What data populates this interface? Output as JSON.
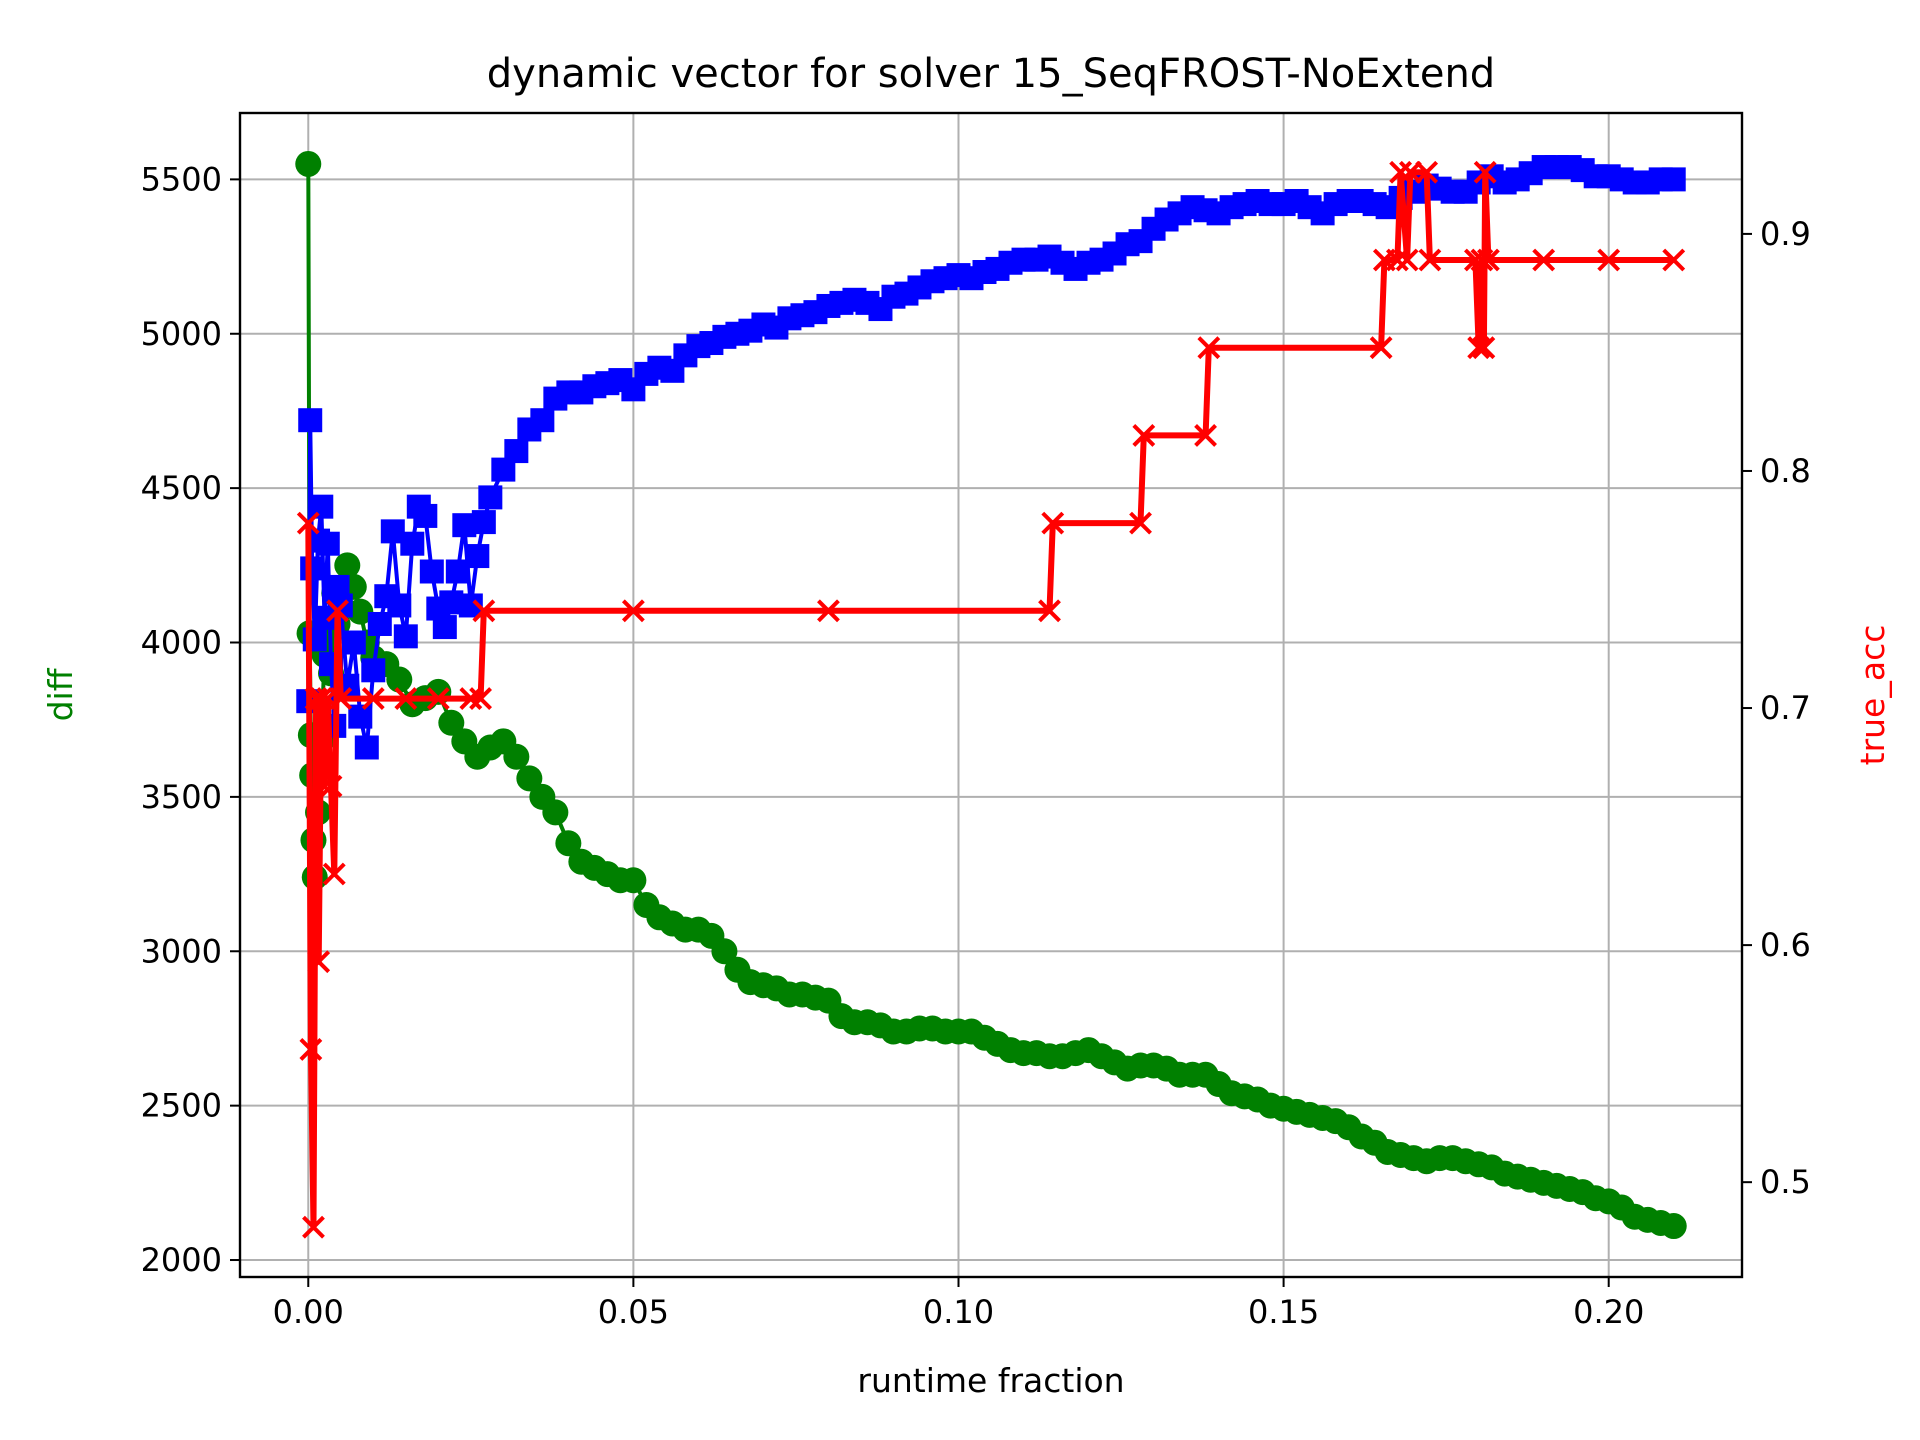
{
  "chart_data": {
    "type": "line",
    "title": "dynamic vector for solver 15_SeqFROST-NoExtend",
    "xlabel": "runtime fraction",
    "ylabel_left": "diff",
    "ylabel_right": "true_acc",
    "xlim": [
      -0.0105,
      0.2205
    ],
    "ylim_left": [
      1945,
      5715
    ],
    "ylim_right": [
      0.46,
      0.951
    ],
    "x_ticks": [
      0.0,
      0.05,
      0.1,
      0.15,
      0.2
    ],
    "x_tick_labels": [
      "0.00",
      "0.05",
      "0.10",
      "0.15",
      "0.20"
    ],
    "y_left_ticks": [
      2000,
      2500,
      3000,
      3500,
      4000,
      4500,
      5000,
      5500
    ],
    "y_left_tick_labels": [
      "2000",
      "2500",
      "3000",
      "3500",
      "4000",
      "4500",
      "5000",
      "5500"
    ],
    "y_right_ticks": [
      0.5,
      0.6,
      0.7,
      0.8,
      0.9
    ],
    "y_right_tick_labels": [
      "0.5",
      "0.6",
      "0.7",
      "0.8",
      "0.9"
    ],
    "grid": true,
    "colors": {
      "diff": "#008000",
      "blue": "#0000ff",
      "true_acc": "#ff0000",
      "axis_left_label": "#008000",
      "axis_right_label": "#ff0000"
    },
    "series": [
      {
        "axis": "left",
        "color": "#008000",
        "marker": "circle",
        "points": [
          [
            0.0,
            5550
          ],
          [
            0.0002,
            4030
          ],
          [
            0.0004,
            3700
          ],
          [
            0.0006,
            3570
          ],
          [
            0.0008,
            3360
          ],
          [
            0.001,
            3240
          ],
          [
            0.0015,
            3450
          ],
          [
            0.002,
            3680
          ],
          [
            0.0025,
            3960
          ],
          [
            0.003,
            4060
          ],
          [
            0.0035,
            3900
          ],
          [
            0.004,
            4160
          ],
          [
            0.0045,
            4060
          ],
          [
            0.005,
            4120
          ],
          [
            0.006,
            4250
          ],
          [
            0.007,
            4180
          ],
          [
            0.008,
            4100
          ],
          [
            0.009,
            4000
          ],
          [
            0.01,
            3950
          ],
          [
            0.012,
            3930
          ],
          [
            0.014,
            3880
          ],
          [
            0.016,
            3800
          ],
          [
            0.018,
            3820
          ],
          [
            0.02,
            3840
          ],
          [
            0.022,
            3740
          ],
          [
            0.024,
            3680
          ],
          [
            0.026,
            3630
          ],
          [
            0.028,
            3660
          ],
          [
            0.03,
            3680
          ],
          [
            0.032,
            3630
          ],
          [
            0.034,
            3560
          ],
          [
            0.036,
            3500
          ],
          [
            0.038,
            3450
          ],
          [
            0.04,
            3350
          ],
          [
            0.042,
            3290
          ],
          [
            0.044,
            3270
          ],
          [
            0.046,
            3250
          ],
          [
            0.048,
            3230
          ],
          [
            0.05,
            3230
          ],
          [
            0.052,
            3150
          ],
          [
            0.054,
            3110
          ],
          [
            0.056,
            3090
          ],
          [
            0.058,
            3070
          ],
          [
            0.06,
            3070
          ],
          [
            0.062,
            3050
          ],
          [
            0.064,
            3000
          ],
          [
            0.066,
            2940
          ],
          [
            0.068,
            2900
          ],
          [
            0.07,
            2890
          ],
          [
            0.072,
            2880
          ],
          [
            0.074,
            2860
          ],
          [
            0.076,
            2860
          ],
          [
            0.078,
            2850
          ],
          [
            0.08,
            2840
          ],
          [
            0.082,
            2790
          ],
          [
            0.084,
            2770
          ],
          [
            0.086,
            2770
          ],
          [
            0.088,
            2760
          ],
          [
            0.09,
            2740
          ],
          [
            0.092,
            2740
          ],
          [
            0.094,
            2750
          ],
          [
            0.096,
            2750
          ],
          [
            0.098,
            2740
          ],
          [
            0.1,
            2740
          ],
          [
            0.102,
            2740
          ],
          [
            0.104,
            2720
          ],
          [
            0.106,
            2700
          ],
          [
            0.108,
            2680
          ],
          [
            0.11,
            2670
          ],
          [
            0.112,
            2670
          ],
          [
            0.114,
            2660
          ],
          [
            0.116,
            2660
          ],
          [
            0.118,
            2670
          ],
          [
            0.12,
            2680
          ],
          [
            0.122,
            2660
          ],
          [
            0.124,
            2640
          ],
          [
            0.126,
            2620
          ],
          [
            0.128,
            2630
          ],
          [
            0.13,
            2630
          ],
          [
            0.132,
            2620
          ],
          [
            0.134,
            2600
          ],
          [
            0.136,
            2600
          ],
          [
            0.138,
            2600
          ],
          [
            0.14,
            2570
          ],
          [
            0.142,
            2540
          ],
          [
            0.144,
            2530
          ],
          [
            0.146,
            2520
          ],
          [
            0.148,
            2500
          ],
          [
            0.15,
            2490
          ],
          [
            0.152,
            2480
          ],
          [
            0.154,
            2470
          ],
          [
            0.156,
            2460
          ],
          [
            0.158,
            2450
          ],
          [
            0.16,
            2430
          ],
          [
            0.162,
            2400
          ],
          [
            0.164,
            2380
          ],
          [
            0.166,
            2350
          ],
          [
            0.168,
            2340
          ],
          [
            0.17,
            2330
          ],
          [
            0.172,
            2320
          ],
          [
            0.174,
            2330
          ],
          [
            0.176,
            2330
          ],
          [
            0.178,
            2320
          ],
          [
            0.18,
            2310
          ],
          [
            0.182,
            2300
          ],
          [
            0.184,
            2280
          ],
          [
            0.186,
            2270
          ],
          [
            0.188,
            2260
          ],
          [
            0.19,
            2250
          ],
          [
            0.192,
            2240
          ],
          [
            0.194,
            2230
          ],
          [
            0.196,
            2220
          ],
          [
            0.198,
            2200
          ],
          [
            0.2,
            2190
          ],
          [
            0.202,
            2170
          ],
          [
            0.204,
            2140
          ],
          [
            0.206,
            2130
          ],
          [
            0.208,
            2120
          ],
          [
            0.21,
            2110
          ]
        ]
      },
      {
        "axis": "left",
        "color": "#0000ff",
        "marker": "square",
        "points": [
          [
            0.0,
            3810
          ],
          [
            0.0003,
            4720
          ],
          [
            0.0006,
            4240
          ],
          [
            0.001,
            4010
          ],
          [
            0.0015,
            4330
          ],
          [
            0.002,
            4440
          ],
          [
            0.0025,
            4080
          ],
          [
            0.003,
            4320
          ],
          [
            0.0035,
            3930
          ],
          [
            0.004,
            3730
          ],
          [
            0.0045,
            4180
          ],
          [
            0.005,
            4120
          ],
          [
            0.006,
            3860
          ],
          [
            0.007,
            4000
          ],
          [
            0.008,
            3760
          ],
          [
            0.009,
            3660
          ],
          [
            0.01,
            3910
          ],
          [
            0.011,
            4060
          ],
          [
            0.012,
            4150
          ],
          [
            0.013,
            4360
          ],
          [
            0.014,
            4120
          ],
          [
            0.015,
            4020
          ],
          [
            0.016,
            4320
          ],
          [
            0.017,
            4440
          ],
          [
            0.018,
            4410
          ],
          [
            0.019,
            4230
          ],
          [
            0.02,
            4110
          ],
          [
            0.021,
            4050
          ],
          [
            0.022,
            4130
          ],
          [
            0.023,
            4230
          ],
          [
            0.024,
            4380
          ],
          [
            0.025,
            4120
          ],
          [
            0.026,
            4280
          ],
          [
            0.027,
            4390
          ],
          [
            0.028,
            4470
          ],
          [
            0.03,
            4560
          ],
          [
            0.032,
            4620
          ],
          [
            0.034,
            4690
          ],
          [
            0.036,
            4720
          ],
          [
            0.038,
            4790
          ],
          [
            0.04,
            4810
          ],
          [
            0.042,
            4810
          ],
          [
            0.044,
            4830
          ],
          [
            0.046,
            4840
          ],
          [
            0.048,
            4850
          ],
          [
            0.05,
            4820
          ],
          [
            0.052,
            4870
          ],
          [
            0.054,
            4890
          ],
          [
            0.056,
            4880
          ],
          [
            0.058,
            4930
          ],
          [
            0.06,
            4960
          ],
          [
            0.062,
            4970
          ],
          [
            0.064,
            4990
          ],
          [
            0.066,
            5000
          ],
          [
            0.068,
            5010
          ],
          [
            0.07,
            5030
          ],
          [
            0.072,
            5020
          ],
          [
            0.074,
            5050
          ],
          [
            0.076,
            5060
          ],
          [
            0.078,
            5070
          ],
          [
            0.08,
            5090
          ],
          [
            0.082,
            5100
          ],
          [
            0.084,
            5110
          ],
          [
            0.086,
            5100
          ],
          [
            0.088,
            5080
          ],
          [
            0.09,
            5120
          ],
          [
            0.092,
            5130
          ],
          [
            0.094,
            5150
          ],
          [
            0.096,
            5170
          ],
          [
            0.098,
            5180
          ],
          [
            0.1,
            5190
          ],
          [
            0.102,
            5180
          ],
          [
            0.104,
            5200
          ],
          [
            0.106,
            5210
          ],
          [
            0.108,
            5230
          ],
          [
            0.11,
            5240
          ],
          [
            0.112,
            5240
          ],
          [
            0.114,
            5250
          ],
          [
            0.116,
            5230
          ],
          [
            0.118,
            5210
          ],
          [
            0.12,
            5230
          ],
          [
            0.122,
            5240
          ],
          [
            0.124,
            5260
          ],
          [
            0.126,
            5290
          ],
          [
            0.128,
            5300
          ],
          [
            0.13,
            5340
          ],
          [
            0.132,
            5370
          ],
          [
            0.134,
            5390
          ],
          [
            0.136,
            5410
          ],
          [
            0.138,
            5400
          ],
          [
            0.14,
            5390
          ],
          [
            0.142,
            5410
          ],
          [
            0.144,
            5420
          ],
          [
            0.146,
            5430
          ],
          [
            0.148,
            5420
          ],
          [
            0.15,
            5420
          ],
          [
            0.152,
            5430
          ],
          [
            0.154,
            5410
          ],
          [
            0.156,
            5390
          ],
          [
            0.158,
            5420
          ],
          [
            0.16,
            5430
          ],
          [
            0.162,
            5430
          ],
          [
            0.164,
            5420
          ],
          [
            0.166,
            5410
          ],
          [
            0.168,
            5440
          ],
          [
            0.17,
            5460
          ],
          [
            0.172,
            5480
          ],
          [
            0.174,
            5470
          ],
          [
            0.176,
            5460
          ],
          [
            0.178,
            5460
          ],
          [
            0.18,
            5490
          ],
          [
            0.182,
            5510
          ],
          [
            0.184,
            5490
          ],
          [
            0.186,
            5500
          ],
          [
            0.188,
            5520
          ],
          [
            0.19,
            5540
          ],
          [
            0.192,
            5540
          ],
          [
            0.194,
            5540
          ],
          [
            0.196,
            5530
          ],
          [
            0.198,
            5510
          ],
          [
            0.2,
            5510
          ],
          [
            0.202,
            5500
          ],
          [
            0.204,
            5490
          ],
          [
            0.206,
            5490
          ],
          [
            0.208,
            5500
          ],
          [
            0.21,
            5500
          ]
        ]
      },
      {
        "axis": "right",
        "color": "#ff0000",
        "marker": "x",
        "points": [
          [
            0.0,
            0.778
          ],
          [
            0.0004,
            0.556
          ],
          [
            0.0008,
            0.481
          ],
          [
            0.0012,
            0.704
          ],
          [
            0.0016,
            0.593
          ],
          [
            0.002,
            0.704
          ],
          [
            0.0025,
            0.667
          ],
          [
            0.003,
            0.704
          ],
          [
            0.0035,
            0.667
          ],
          [
            0.004,
            0.63
          ],
          [
            0.0045,
            0.741
          ],
          [
            0.005,
            0.704
          ],
          [
            0.01,
            0.704
          ],
          [
            0.015,
            0.704
          ],
          [
            0.02,
            0.704
          ],
          [
            0.025,
            0.704
          ],
          [
            0.0265,
            0.704
          ],
          [
            0.027,
            0.741
          ],
          [
            0.05,
            0.741
          ],
          [
            0.08,
            0.741
          ],
          [
            0.114,
            0.741
          ],
          [
            0.1145,
            0.778
          ],
          [
            0.128,
            0.778
          ],
          [
            0.1285,
            0.815
          ],
          [
            0.138,
            0.815
          ],
          [
            0.1385,
            0.852
          ],
          [
            0.165,
            0.852
          ],
          [
            0.1655,
            0.889
          ],
          [
            0.1675,
            0.889
          ],
          [
            0.168,
            0.926
          ],
          [
            0.169,
            0.889
          ],
          [
            0.1695,
            0.926
          ],
          [
            0.172,
            0.926
          ],
          [
            0.1725,
            0.889
          ],
          [
            0.1795,
            0.889
          ],
          [
            0.18,
            0.852
          ],
          [
            0.1805,
            0.889
          ],
          [
            0.1808,
            0.852
          ],
          [
            0.181,
            0.926
          ],
          [
            0.1815,
            0.889
          ],
          [
            0.19,
            0.889
          ],
          [
            0.2,
            0.889
          ],
          [
            0.21,
            0.889
          ]
        ]
      }
    ]
  }
}
